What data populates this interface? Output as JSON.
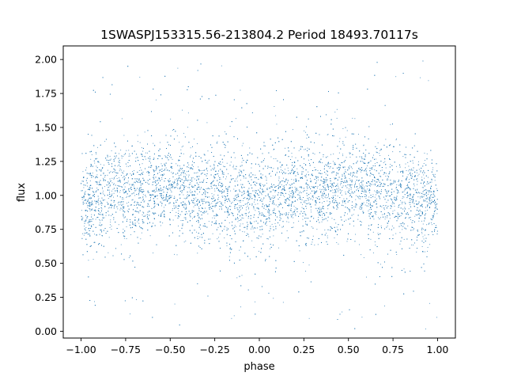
{
  "chart_data": {
    "type": "scatter",
    "title": "1SWASPJ153315.56-213804.2 Period 18493.70117s",
    "xlabel": "phase",
    "ylabel": "flux",
    "xlim": [
      -1.1,
      1.1
    ],
    "ylim": [
      -0.05,
      2.1
    ],
    "x_ticks": [
      -1.0,
      -0.75,
      -0.5,
      -0.25,
      0.0,
      0.25,
      0.5,
      0.75,
      1.0
    ],
    "x_tick_labels": [
      "−1.00",
      "−0.75",
      "−0.50",
      "−0.25",
      "0.00",
      "0.25",
      "0.50",
      "0.75",
      "1.00"
    ],
    "y_ticks": [
      0.0,
      0.25,
      0.5,
      0.75,
      1.0,
      1.25,
      1.5,
      1.75,
      2.0
    ],
    "y_tick_labels": [
      "0.00",
      "0.25",
      "0.50",
      "0.75",
      "1.00",
      "1.25",
      "1.50",
      "1.75",
      "2.00"
    ],
    "grid": false,
    "marker_color": "#1f77b4",
    "series": [
      {
        "x_range": [
          -1.0,
          1.0
        ],
        "y_range": [
          0.0,
          2.0
        ],
        "trend": [
          {
            "phase": -1.0,
            "flux": 0.95
          },
          {
            "phase": -0.75,
            "flux": 1.04
          },
          {
            "phase": -0.5,
            "flux": 1.06
          },
          {
            "phase": -0.25,
            "flux": 1.0
          },
          {
            "phase": 0.0,
            "flux": 0.94
          },
          {
            "phase": 0.25,
            "flux": 1.04
          },
          {
            "phase": 0.5,
            "flux": 1.06
          },
          {
            "phase": 0.75,
            "flux": 1.0
          },
          {
            "phase": 1.0,
            "flux": 0.95
          }
        ],
        "scatter_sd": 0.17
      }
    ]
  }
}
